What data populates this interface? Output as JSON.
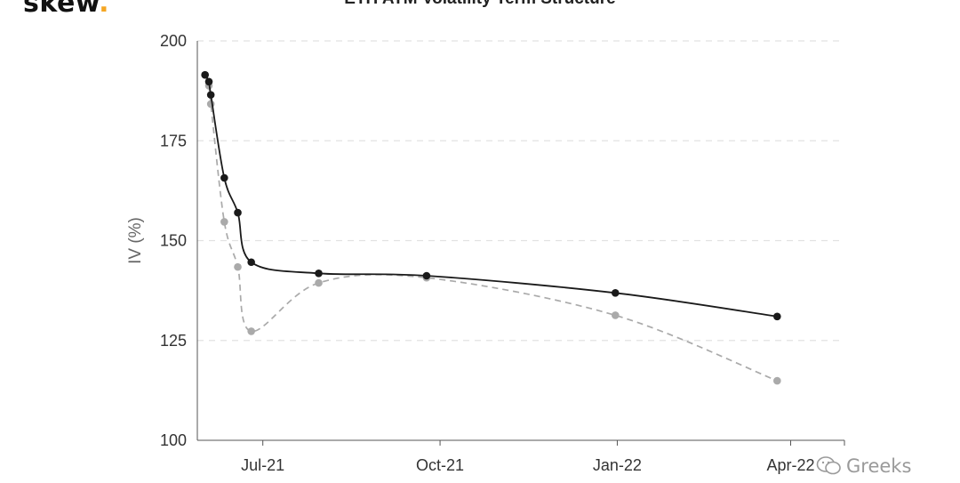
{
  "header": {
    "logo_text": "skew",
    "logo_dot": ".",
    "title": "ETH ATM Volatility Term Structure"
  },
  "watermark": {
    "text": "Greeks",
    "icon": "wechat-icon"
  },
  "chart_data": {
    "type": "line",
    "title": "ETH ATM Volatility Term Structure",
    "ylabel": "IV (%)",
    "xlabel": "",
    "ylim": [
      100,
      200
    ],
    "xlim": [
      "2021-05-28",
      "2022-04-28"
    ],
    "yticks": [
      100,
      125,
      150,
      175,
      200
    ],
    "xticks": [
      {
        "date": "2021-07-01",
        "label": "Jul-21"
      },
      {
        "date": "2021-10-01",
        "label": "Oct-21"
      },
      {
        "date": "2022-01-01",
        "label": "Jan-22"
      },
      {
        "date": "2022-04-01",
        "label": "Apr-22"
      }
    ],
    "grid": "horizontal dashed",
    "series": [
      {
        "color": "#1a1a1a",
        "dashed": false,
        "x": [
          "2021-06-01",
          "2021-06-03",
          "2021-06-04",
          "2021-06-11",
          "2021-06-18",
          "2021-06-25",
          "2021-07-30",
          "2021-09-24",
          "2021-12-31",
          "2022-03-25"
        ],
        "y": [
          191.5,
          189.8,
          186.5,
          165.7,
          157.0,
          144.6,
          141.8,
          141.2,
          136.9,
          131.0
        ]
      },
      {
        "color": "#aaaaaa",
        "dashed": true,
        "x": [
          "2021-06-01",
          "2021-06-03",
          "2021-06-04",
          "2021-06-11",
          "2021-06-18",
          "2021-06-25",
          "2021-07-30",
          "2021-09-24",
          "2021-12-31",
          "2022-03-25"
        ],
        "y": [
          191.5,
          188.8,
          184.2,
          154.7,
          143.4,
          127.3,
          139.4,
          140.7,
          131.3,
          114.9
        ]
      }
    ]
  }
}
